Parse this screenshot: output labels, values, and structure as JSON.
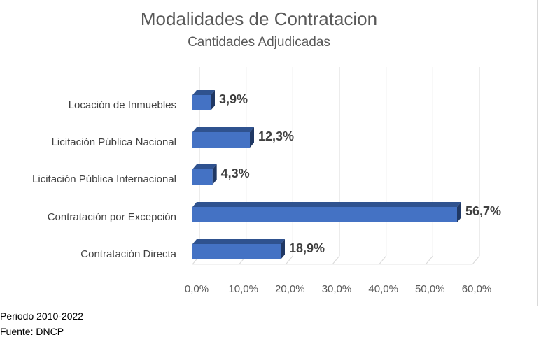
{
  "chart_data": {
    "type": "bar",
    "orientation": "horizontal",
    "title": "Modalidades de Contratacion",
    "subtitle": "Cantidades Adjudicadas",
    "categories": [
      "Locación de Inmuebles",
      "Licitación Pública Nacional",
      "Licitación Pública Internacional",
      "Contratación por Excepción",
      "Contratación Directa"
    ],
    "values": [
      3.9,
      12.3,
      4.3,
      56.7,
      18.9
    ],
    "value_labels": [
      "3,9%",
      "12,3%",
      "4,3%",
      "56,7%",
      "18,9%"
    ],
    "xlim": [
      0,
      60
    ],
    "x_ticks": [
      "0,0%",
      "10,0%",
      "20,0%",
      "30,0%",
      "40,0%",
      "50,0%",
      "60,0%"
    ],
    "grid": true,
    "bar_color": "#4472c4",
    "bar_top_color": "#2f528f",
    "bar_side_color": "#203864"
  },
  "footer": {
    "period": "Periodo 2010-2022",
    "source": "Fuente: DNCP"
  }
}
